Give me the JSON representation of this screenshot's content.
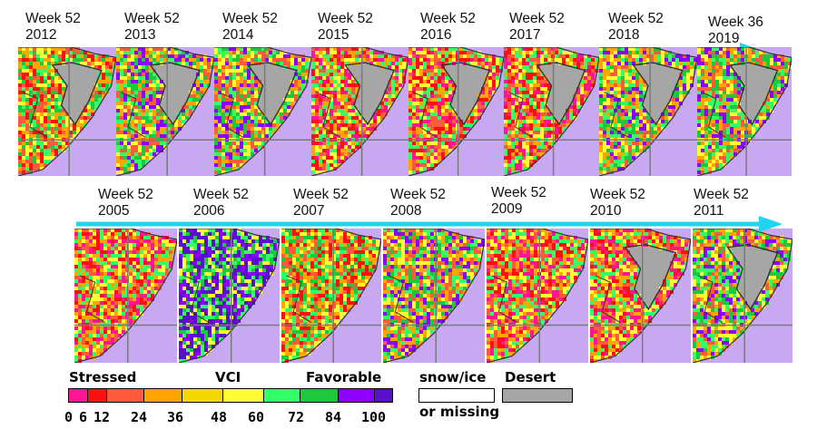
{
  "row1": [
    {
      "week": "Week 52",
      "year": "2012"
    },
    {
      "week": "Week 52",
      "year": "2013"
    },
    {
      "week": "Week 52",
      "year": "2014"
    },
    {
      "week": "Week 52",
      "year": "2015"
    },
    {
      "week": "Week 52",
      "year": "2016"
    },
    {
      "week": "Week 52",
      "year": "2017"
    },
    {
      "week": "Week 52",
      "year": "2018"
    },
    {
      "week": "Week 36",
      "year": "2019"
    }
  ],
  "row2": [
    {
      "week": "Week 52",
      "year": "2005"
    },
    {
      "week": "Week 52",
      "year": "2006"
    },
    {
      "week": "Week 52",
      "year": "2007"
    },
    {
      "week": "Week 52",
      "year": "2008"
    },
    {
      "week": "Week 52",
      "year": "2009"
    },
    {
      "week": "Week 52",
      "year": "2010"
    },
    {
      "week": "Week 52",
      "year": "2011"
    }
  ],
  "legend": {
    "stressed": "Stressed",
    "vci": "VCI",
    "favorable": "Favorable",
    "snow_line1": "snow/ice",
    "snow_line2": "or missing",
    "desert": "Desert",
    "ticks": [
      "0",
      "6",
      "12",
      "24",
      "36",
      "48",
      "60",
      "72",
      "84",
      "100"
    ],
    "colors": [
      "#ff1493",
      "#ff1010",
      "#ff5a3c",
      "#ffa500",
      "#f5d800",
      "#ffff33",
      "#33ff66",
      "#1ec83c",
      "#8b00ff",
      "#5a10c8"
    ]
  },
  "colors": {
    "arrow": "#22d3ee",
    "ocean": "#c9a8f2",
    "desert": "#a6a6a6"
  }
}
